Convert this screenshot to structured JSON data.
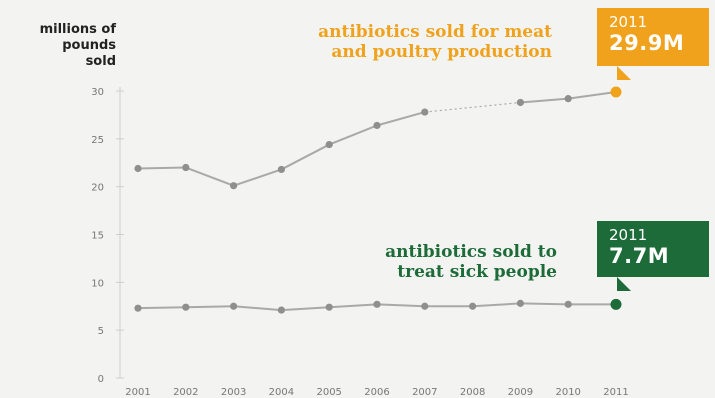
{
  "colors": {
    "meat": "#f0a21c",
    "sick": "#1d6b38",
    "line": "#a9a9a9",
    "point": "#8f8f8f",
    "axis": "#cfcfcf",
    "tick_text": "#777777"
  },
  "y_unit_label": [
    "millions of",
    "pounds",
    "sold"
  ],
  "labels": {
    "meat": [
      "antibiotics sold for meat",
      "and poultry production"
    ],
    "sick": [
      "antibiotics sold to",
      "treat sick people"
    ]
  },
  "callouts": {
    "meat": {
      "year": "2011",
      "value": "29.9M"
    },
    "sick": {
      "year": "2011",
      "value": "7.7M"
    }
  },
  "chart_data": {
    "type": "line",
    "x": [
      "2001",
      "2002",
      "2003",
      "2004",
      "2005",
      "2006",
      "2007",
      "2008",
      "2009",
      "2010",
      "2011"
    ],
    "series": [
      {
        "key": "meat",
        "values": [
          21.9,
          22.0,
          20.1,
          21.8,
          24.4,
          26.4,
          27.8,
          null,
          28.8,
          29.2,
          29.9
        ]
      },
      {
        "key": "sick",
        "values": [
          7.3,
          7.4,
          7.5,
          7.1,
          7.4,
          7.7,
          7.5,
          7.5,
          7.8,
          7.7,
          7.7
        ]
      }
    ],
    "ylim": [
      0,
      30
    ],
    "yticks": [
      0,
      5,
      10,
      15,
      20,
      25,
      30
    ],
    "grid": false
  }
}
